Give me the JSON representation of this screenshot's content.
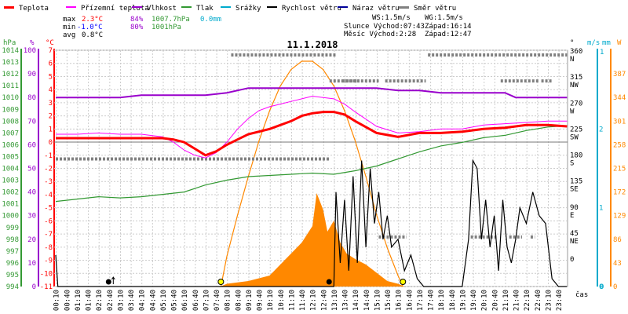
{
  "legend": [
    {
      "label": "Teplota",
      "color": "#ff0000"
    },
    {
      "label": "Přízemní teplota",
      "color": "#ff00ff"
    },
    {
      "label": "Vlhkost",
      "color": "#9900cc"
    },
    {
      "label": "Tlak",
      "color": "#339933"
    },
    {
      "label": "Srážky",
      "color": "#00aacc"
    },
    {
      "label": "Rychlost větru",
      "color": "#000000"
    },
    {
      "label": "Náraz větru",
      "color": "#000099"
    },
    {
      "label": "Směr větru",
      "color": "#808080"
    }
  ],
  "stats": {
    "max_label": "max",
    "max_temp": "2.3°C",
    "max_hum": "84%",
    "max_press": "1007.7hPa",
    "max_rain": "0.0mm",
    "min_label": "min",
    "min_temp": "-1.0°C",
    "min_hum": "80%",
    "min_press": "1001hPa",
    "avg_label": "avg",
    "avg_temp": "0.8°C"
  },
  "astro": {
    "ws": "WS:1.5m/s",
    "wg": "WG:1.5m/s",
    "sun": "Slunce Východ:07:43",
    "sun_set": "Západ:16:14",
    "moon": "Měsíc  Východ:2:28",
    "moon_set": "Západ:12:47"
  },
  "title": "11.1.2018",
  "axis_units": {
    "hpa": "hPa",
    "pct": "%",
    "degc": "°C",
    "deg": "°",
    "ms": "m/s",
    "mm": "mm",
    "w": "W",
    "cas": "čas"
  },
  "colors": {
    "temp": "#ff0000",
    "ground": "#ff00ff",
    "hum": "#9900cc",
    "press": "#339933",
    "rain": "#00aacc",
    "wind": "#000000",
    "gust": "#000099",
    "dir": "#808080",
    "solar": "#ff8800",
    "grid": "#cccccc"
  },
  "chart_data": {
    "type": "line",
    "title": "11.1.2018",
    "x_ticks": [
      "00:10",
      "00:40",
      "01:10",
      "01:40",
      "02:10",
      "02:40",
      "03:10",
      "03:40",
      "04:10",
      "04:40",
      "05:10",
      "05:40",
      "06:10",
      "06:40",
      "07:10",
      "07:40",
      "08:10",
      "08:40",
      "09:10",
      "09:40",
      "10:10",
      "10:40",
      "11:10",
      "11:40",
      "12:10",
      "12:40",
      "13:10",
      "13:40",
      "14:10",
      "14:40",
      "15:10",
      "15:40",
      "16:10",
      "16:40",
      "17:10",
      "17:40",
      "18:10",
      "18:40",
      "19:10",
      "19:40",
      "20:10",
      "20:40",
      "21:10",
      "21:40",
      "22:10",
      "22:40",
      "23:10",
      "23:40"
    ],
    "y_axes": {
      "pressure_hpa": {
        "min": 994,
        "max": 1014,
        "ticks": [
          994,
          995,
          996,
          997,
          998,
          999,
          1000,
          1001,
          1002,
          1003,
          1004,
          1005,
          1006,
          1007,
          1008,
          1009,
          1010,
          1011,
          1012,
          1013,
          1014
        ]
      },
      "humidity_pct": {
        "min": 0,
        "max": 100,
        "ticks": [
          0,
          10,
          20,
          30,
          40,
          50,
          60,
          70,
          80,
          90,
          100
        ]
      },
      "temperature_c": {
        "min": -11,
        "max": 7,
        "ticks": [
          -11,
          -10,
          -9,
          -8,
          -7,
          -6,
          -5,
          -4,
          -3,
          -2,
          -1,
          0,
          1,
          2,
          3,
          4,
          5,
          6,
          7
        ]
      },
      "wind_dir_deg": {
        "ticks": [
          {
            "v": 0,
            "l": "0"
          },
          {
            "v": 45,
            "l": "45"
          },
          {
            "v": 45,
            "l": "NE"
          },
          {
            "v": 90,
            "l": "90"
          },
          {
            "v": 90,
            "l": "E"
          },
          {
            "v": 135,
            "l": "135"
          },
          {
            "v": 135,
            "l": "SE"
          },
          {
            "v": 180,
            "l": "180"
          },
          {
            "v": 180,
            "l": "S"
          },
          {
            "v": 225,
            "l": "225"
          },
          {
            "v": 225,
            "l": "SW"
          },
          {
            "v": 270,
            "l": "270"
          },
          {
            "v": 270,
            "l": "W"
          },
          {
            "v": 315,
            "l": "315"
          },
          {
            "v": 315,
            "l": "NW"
          },
          {
            "v": 360,
            "l": "360"
          },
          {
            "v": 360,
            "l": "N"
          }
        ]
      },
      "wind_ms": {
        "min": 0,
        "max": 3,
        "ticks": [
          0,
          1,
          2
        ]
      },
      "rain_mm": {
        "min": 0,
        "max": 1,
        "ticks": [
          0,
          1
        ]
      },
      "solar_w": {
        "min": 0,
        "max": 430,
        "ticks": [
          0,
          43,
          86,
          129,
          172,
          215,
          258,
          301,
          344,
          387
        ]
      }
    },
    "series": [
      {
        "name": "Teplota",
        "axis": "temperature_c",
        "x": [
          0,
          1,
          2,
          3,
          4,
          5,
          5.5,
          6,
          6.5,
          7,
          7.5,
          8,
          8.5,
          9,
          10,
          11,
          11.5,
          12,
          12.5,
          13,
          13.5,
          14,
          15,
          16,
          17,
          18,
          19,
          20,
          21,
          22,
          23,
          23.9
        ],
        "y": [
          0.3,
          0.3,
          0.3,
          0.3,
          0.3,
          0.3,
          0.2,
          0,
          -0.5,
          -1.0,
          -0.7,
          -0.2,
          0.2,
          0.6,
          1.0,
          1.6,
          2.0,
          2.2,
          2.3,
          2.3,
          2.1,
          1.6,
          0.7,
          0.4,
          0.7,
          0.7,
          0.8,
          1.0,
          1.1,
          1.3,
          1.3,
          1.2
        ]
      },
      {
        "name": "Přízemní teplota",
        "axis": "temperature_c",
        "x": [
          0,
          1,
          2,
          3,
          4,
          5,
          5.5,
          6,
          6.5,
          7,
          7.5,
          8,
          8.5,
          9,
          9.5,
          10,
          10.5,
          11,
          11.5,
          12,
          12.5,
          13,
          13.5,
          14,
          15,
          16,
          17,
          18,
          19,
          20,
          21,
          22,
          23,
          23.9
        ],
        "y": [
          0.6,
          0.6,
          0.7,
          0.6,
          0.6,
          0.4,
          0,
          -0.6,
          -1.0,
          -1.2,
          -0.8,
          0,
          1.0,
          1.8,
          2.4,
          2.7,
          2.9,
          3.1,
          3.3,
          3.5,
          3.4,
          3.3,
          2.9,
          2.3,
          1.2,
          0.7,
          0.8,
          1.0,
          1.0,
          1.3,
          1.4,
          1.5,
          1.6,
          1.6
        ]
      },
      {
        "name": "Vlhkost",
        "axis": "humidity_pct",
        "x": [
          0,
          2,
          2.5,
          3,
          4,
          5,
          6,
          7,
          8,
          9,
          10,
          11,
          12,
          13,
          13.5,
          14,
          15,
          16,
          17,
          18,
          19,
          20,
          21,
          21.5,
          22,
          23,
          23.9
        ],
        "y": [
          80,
          80,
          80,
          80,
          81,
          81,
          81,
          81,
          82,
          84,
          84,
          84,
          84,
          84,
          84,
          84,
          84,
          83,
          83,
          82,
          82,
          82,
          82,
          80,
          80,
          80,
          80
        ]
      },
      {
        "name": "Tlak",
        "axis": "pressure_hpa",
        "x": [
          0,
          1,
          2,
          3,
          4,
          5,
          6,
          7,
          8,
          9,
          10,
          11,
          12,
          13,
          14,
          15,
          16,
          17,
          18,
          19,
          20,
          21,
          22,
          23,
          23.9
        ],
        "y": [
          1001.2,
          1001.4,
          1001.6,
          1001.5,
          1001.6,
          1001.8,
          1002.0,
          1002.6,
          1003.0,
          1003.3,
          1003.4,
          1003.5,
          1003.6,
          1003.5,
          1003.8,
          1004.2,
          1004.8,
          1005.4,
          1005.9,
          1006.2,
          1006.6,
          1006.8,
          1007.2,
          1007.5,
          1007.6
        ]
      },
      {
        "name": "Rychlost větru",
        "axis": "wind_ms",
        "x": [
          0,
          0.1,
          0.3,
          0.5,
          13.0,
          13.1,
          13.3,
          13.5,
          13.7,
          13.9,
          14.1,
          14.3,
          14.5,
          14.7,
          14.9,
          15.1,
          15.3,
          15.5,
          15.7,
          16.0,
          16.3,
          16.6,
          16.9,
          17.2,
          17.5,
          18.5,
          19.0,
          19.3,
          19.5,
          19.7,
          19.9,
          20.1,
          20.3,
          20.5,
          20.7,
          20.9,
          21.1,
          21.3,
          21.5,
          21.7,
          22.0,
          22.3,
          22.6,
          22.9,
          23.2,
          23.5,
          23.9
        ],
        "y": [
          0.4,
          0.0,
          0.0,
          0.0,
          0.0,
          1.2,
          0.3,
          1.1,
          0.2,
          1.4,
          0.3,
          1.6,
          0.5,
          1.5,
          0.8,
          1.2,
          0.6,
          0.9,
          0.5,
          0.6,
          0.2,
          0.4,
          0.1,
          0.0,
          0.0,
          0.0,
          0.0,
          0.6,
          1.6,
          1.5,
          0.6,
          1.1,
          0.5,
          0.9,
          0.2,
          1.1,
          0.5,
          0.3,
          0.6,
          1.0,
          0.8,
          1.2,
          0.9,
          0.8,
          0.1,
          0.0,
          0.0
        ]
      },
      {
        "name": "Solar",
        "axis": "solar_w",
        "x": [
          7.72,
          8,
          8.5,
          9,
          9.5,
          10,
          10.5,
          11,
          11.5,
          12,
          12.5,
          13,
          13.5,
          14,
          14.5,
          15,
          15.5,
          16,
          16.23
        ],
        "y": [
          0,
          55,
          130,
          200,
          265,
          320,
          365,
          395,
          410,
          410,
          395,
          365,
          320,
          265,
          200,
          130,
          70,
          20,
          0
        ]
      },
      {
        "name": "Solar radiation measured",
        "axis": "solar_w",
        "x": [
          7.7,
          8,
          9,
          10,
          10.5,
          11,
          11.5,
          12,
          12.2,
          12.5,
          12.7,
          13,
          13.3,
          13.6,
          14,
          14.5,
          15,
          15.5,
          16,
          16.3
        ],
        "y": [
          0,
          5,
          10,
          20,
          40,
          60,
          80,
          110,
          170,
          140,
          100,
          120,
          80,
          60,
          50,
          40,
          25,
          10,
          5,
          0
        ]
      },
      {
        "name": "Směr větru",
        "axis": "wind_dir_deg",
        "segments": [
          [
            0.0,
            180,
            12.8,
            180
          ],
          [
            12.8,
            315,
            15.1,
            315
          ],
          [
            15.1,
            45,
            16.4,
            45
          ],
          [
            8.2,
            360,
            13.1,
            360
          ],
          [
            13.4,
            315,
            14.2,
            315
          ],
          [
            15.4,
            315,
            17.3,
            315
          ],
          [
            17.4,
            360,
            23.9,
            360
          ],
          [
            19.4,
            45,
            20.6,
            45
          ],
          [
            20.8,
            315,
            22.6,
            315
          ],
          [
            21.2,
            45,
            21.8,
            45
          ],
          [
            22.2,
            45,
            22.4,
            45
          ],
          [
            22.7,
            315,
            23.2,
            315
          ]
        ]
      }
    ],
    "markers": {
      "sunrise": 7.72,
      "sunset": 16.23,
      "moonrise": 2.47,
      "moonset": 12.78
    },
    "reference_lines": {
      "zero_temp": 0
    }
  }
}
